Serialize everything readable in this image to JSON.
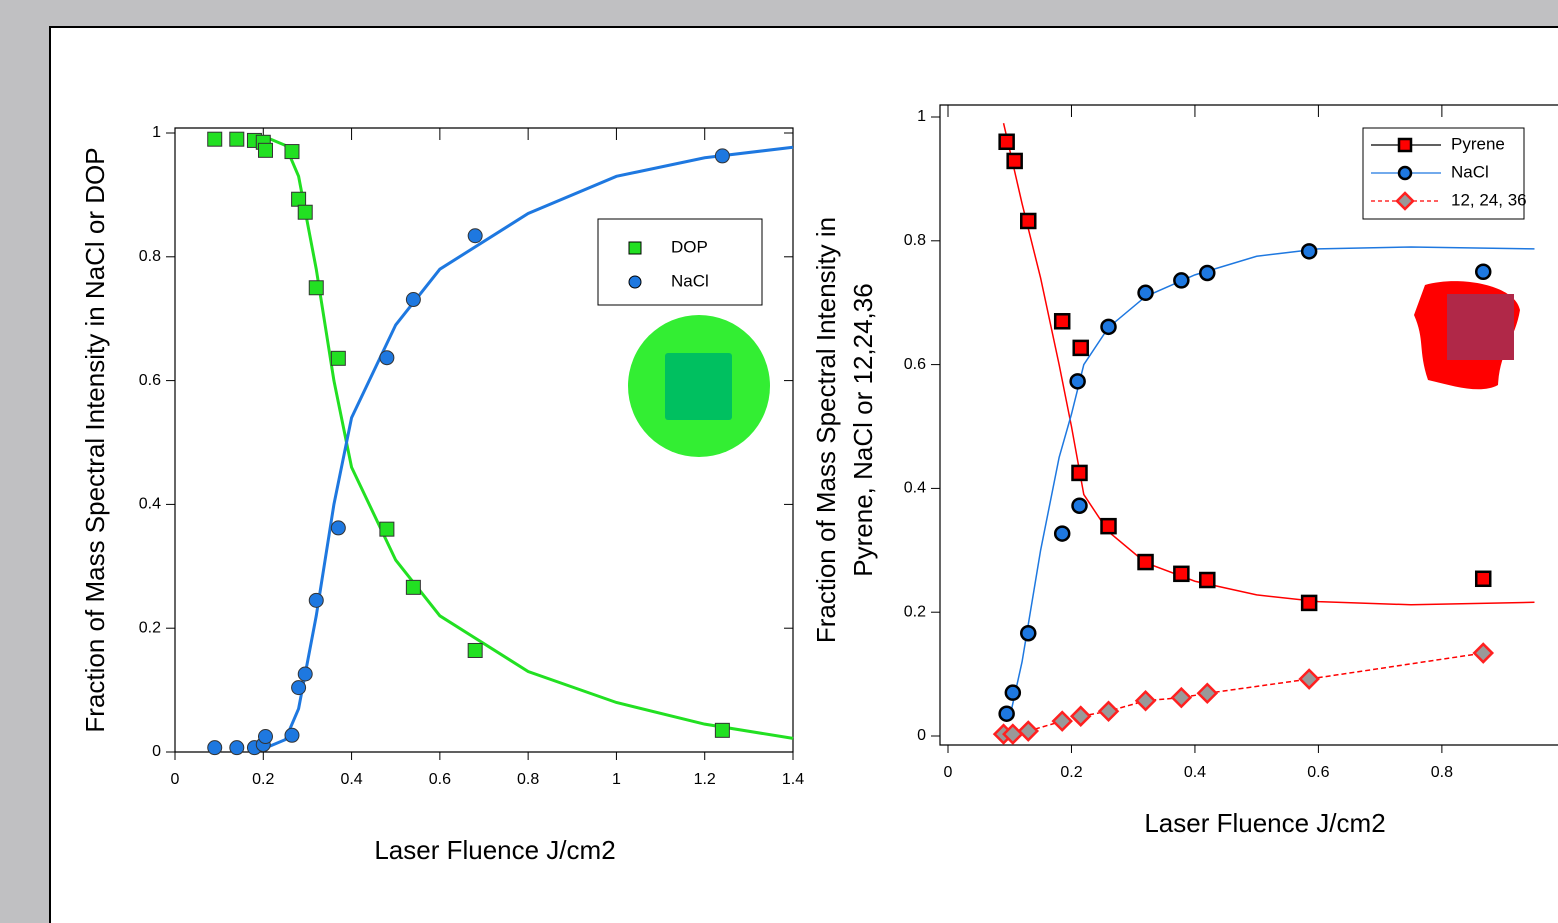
{
  "chart_data": [
    {
      "type": "scatter",
      "x_label": "Laser Fluence J/cm2",
      "y_label": [
        "Fraction of Mass Spectral Intensity in NaCl or DOP"
      ],
      "xlim": [
        0,
        1.4
      ],
      "ylim": [
        0,
        1
      ],
      "xticks": [
        0,
        0.2,
        0.4,
        0.6,
        0.8,
        1,
        1.2,
        1.4
      ],
      "yticks": [
        0,
        0.2,
        0.4,
        0.6,
        0.8,
        1
      ],
      "series": [
        {
          "name": "DOP",
          "color": "#22e022",
          "marker": "square",
          "x": [
            0.09,
            0.14,
            0.18,
            0.2,
            0.205,
            0.265,
            0.28,
            0.295,
            0.32,
            0.37,
            0.48,
            0.54,
            0.68,
            1.24
          ],
          "values": [
            0.99,
            0.99,
            0.988,
            0.985,
            0.972,
            0.97,
            0.893,
            0.872,
            0.75,
            0.636,
            0.36,
            0.266,
            0.164,
            0.035
          ]
        },
        {
          "name": "NaCl",
          "color": "#1e78e0",
          "marker": "circle",
          "x": [
            0.09,
            0.14,
            0.18,
            0.2,
            0.205,
            0.265,
            0.28,
            0.295,
            0.32,
            0.37,
            0.48,
            0.54,
            0.68,
            1.24
          ],
          "values": [
            0.007,
            0.007,
            0.007,
            0.012,
            0.025,
            0.027,
            0.104,
            0.126,
            0.245,
            0.362,
            0.637,
            0.731,
            0.834,
            0.963
          ]
        }
      ],
      "fits": [
        {
          "color": "#22e022",
          "x": [
            0.2,
            0.25,
            0.28,
            0.32,
            0.36,
            0.4,
            0.5,
            0.6,
            0.8,
            1.0,
            1.2,
            1.4
          ],
          "values": [
            0.995,
            0.98,
            0.93,
            0.78,
            0.6,
            0.46,
            0.31,
            0.22,
            0.13,
            0.08,
            0.045,
            0.022
          ]
        },
        {
          "color": "#1e78e0",
          "x": [
            0.2,
            0.25,
            0.28,
            0.32,
            0.36,
            0.4,
            0.5,
            0.6,
            0.8,
            1.0,
            1.2,
            1.4
          ],
          "values": [
            0.005,
            0.02,
            0.07,
            0.22,
            0.4,
            0.54,
            0.69,
            0.78,
            0.87,
            0.93,
            0.96,
            0.977
          ]
        }
      ]
    },
    {
      "type": "scatter",
      "x_label": "Laser Fluence J/cm2",
      "y_label": [
        "Fraction of Mass Spectral Intensity in",
        "Pyrene, NaCl or 12,24,36"
      ],
      "xlim": [
        0,
        0.98
      ],
      "ylim": [
        0,
        1
      ],
      "xticks": [
        0,
        0.2,
        0.4,
        0.6,
        0.8
      ],
      "yticks": [
        0,
        0.2,
        0.4,
        0.6,
        0.8,
        1
      ],
      "series": [
        {
          "name": "Pyrene",
          "color": "#ff0000",
          "marker": "square",
          "line_color": "#000000",
          "x": [
            0.095,
            0.108,
            0.13,
            0.185,
            0.215,
            0.213,
            0.26,
            0.32,
            0.378,
            0.42,
            0.585,
            0.867
          ],
          "values": [
            0.96,
            0.929,
            0.832,
            0.67,
            0.627,
            0.425,
            0.339,
            0.281,
            0.262,
            0.252,
            0.215,
            0.254
          ]
        },
        {
          "name": "NaCl",
          "color": "#1e78e0",
          "marker": "circle",
          "line_color": "#1e78e0",
          "x": [
            0.095,
            0.105,
            0.13,
            0.185,
            0.21,
            0.213,
            0.26,
            0.32,
            0.378,
            0.42,
            0.585,
            0.867
          ],
          "values": [
            0.036,
            0.07,
            0.166,
            0.327,
            0.573,
            0.372,
            0.661,
            0.716,
            0.736,
            0.748,
            0.783,
            0.75
          ]
        },
        {
          "name": "12, 24, 36",
          "color": "#999999",
          "marker": "diamond",
          "line_color": "#ff0000",
          "dashed": true,
          "x": [
            0.09,
            0.105,
            0.13,
            0.185,
            0.215,
            0.26,
            0.32,
            0.378,
            0.42,
            0.585,
            0.867
          ],
          "values": [
            0.003,
            0.003,
            0.008,
            0.024,
            0.032,
            0.04,
            0.057,
            0.062,
            0.069,
            0.092,
            0.134
          ]
        }
      ],
      "fits": [
        {
          "color": "#ff0000",
          "x": [
            0.09,
            0.12,
            0.15,
            0.18,
            0.2,
            0.22,
            0.26,
            0.32,
            0.4,
            0.5,
            0.6,
            0.75,
            0.95
          ],
          "values": [
            0.99,
            0.86,
            0.74,
            0.6,
            0.5,
            0.39,
            0.33,
            0.28,
            0.25,
            0.228,
            0.217,
            0.212,
            0.216
          ]
        },
        {
          "color": "#1e78e0",
          "x": [
            0.1,
            0.12,
            0.15,
            0.18,
            0.2,
            0.22,
            0.26,
            0.32,
            0.4,
            0.5,
            0.6,
            0.75,
            0.95
          ],
          "values": [
            0.03,
            0.12,
            0.3,
            0.45,
            0.52,
            0.6,
            0.66,
            0.71,
            0.745,
            0.775,
            0.787,
            0.79,
            0.787
          ]
        }
      ]
    }
  ]
}
